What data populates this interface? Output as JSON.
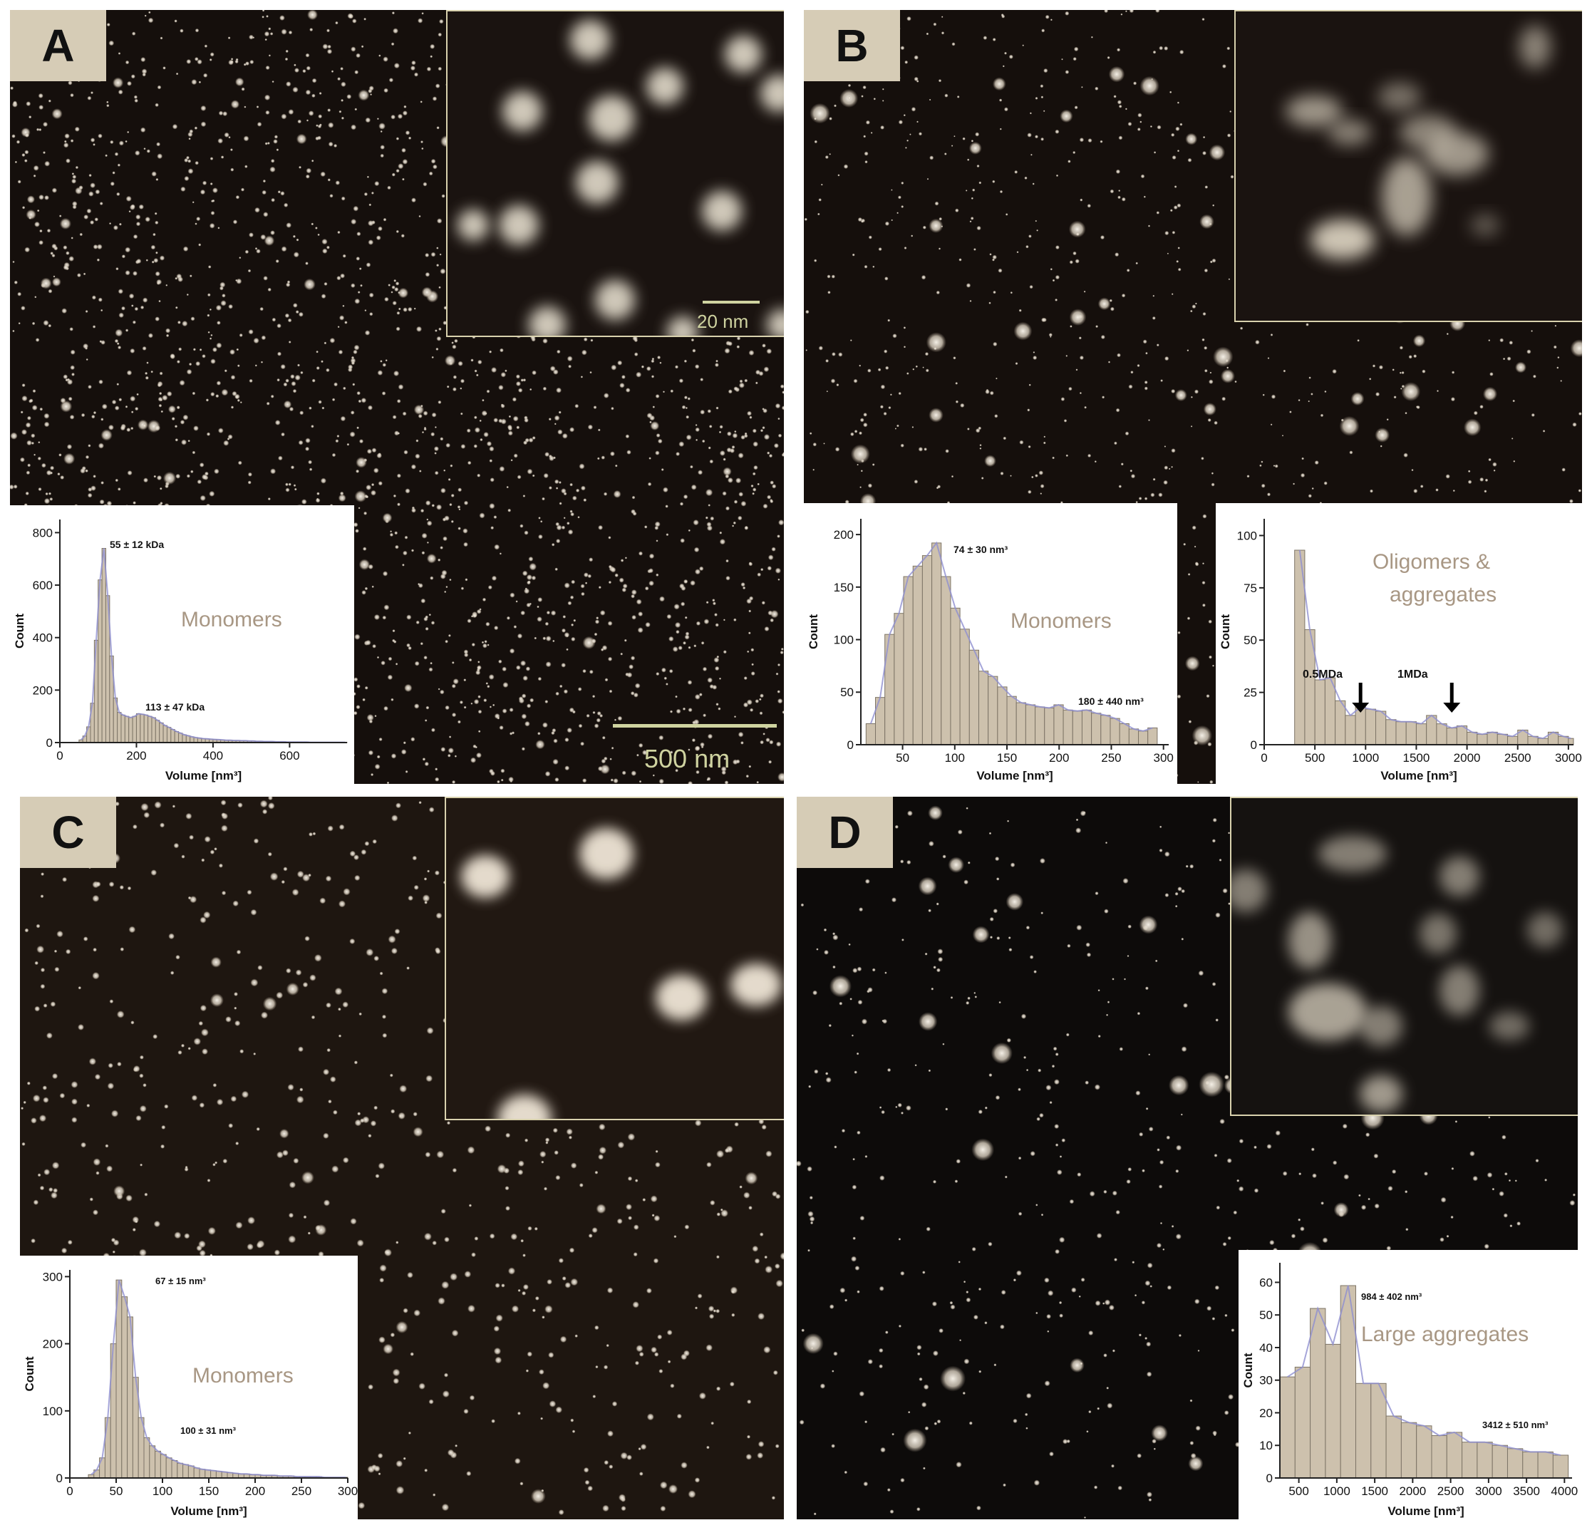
{
  "panels": [
    {
      "id": "A",
      "label": "A"
    },
    {
      "id": "B",
      "label": "B"
    },
    {
      "id": "C",
      "label": "C"
    },
    {
      "id": "D",
      "label": "D"
    }
  ],
  "scale_bars": {
    "inset_A": "20 nm",
    "main_A": "500 nm"
  },
  "colors": {
    "bar": "#cdc1ad",
    "bar_stroke": "#7d7466",
    "fit_total": "#8f8fd0",
    "fit_comp": "#b3c99a",
    "label_text": "#a89784",
    "panel_bg": "#150f0c",
    "label_bg": "#d6ccb6",
    "scalebar": "#cfd3a0"
  },
  "chart_data": [
    {
      "type": "bar",
      "panel": "A",
      "xlabel": "Volume [nm³]",
      "ylabel": "Count",
      "xlim": [
        0,
        750
      ],
      "ylim": [
        0,
        850
      ],
      "xticks": [
        0,
        200,
        400,
        600
      ],
      "yticks": [
        0,
        200,
        400,
        600,
        800
      ],
      "bin_start": 50,
      "bin_width": 10,
      "values": [
        10,
        25,
        60,
        150,
        390,
        620,
        740,
        560,
        330,
        170,
        115,
        105,
        100,
        95,
        100,
        110,
        108,
        105,
        100,
        95,
        85,
        75,
        65,
        58,
        50,
        42,
        36,
        30,
        26,
        22,
        19,
        17,
        15,
        14,
        13,
        12,
        11,
        10,
        9,
        9,
        8,
        8,
        7,
        7,
        6,
        6,
        5,
        5,
        4,
        4,
        4,
        3,
        3,
        3,
        2,
        2,
        2,
        2,
        2,
        2,
        1,
        1,
        1,
        1,
        1,
        1,
        1,
        1,
        1,
        1
      ],
      "annotations": [
        {
          "text": "55 ± 12 kDa"
        },
        {
          "text": "113 ± 47 kDa"
        },
        {
          "text": "Monomers"
        }
      ]
    },
    {
      "type": "bar",
      "panel": "B-monomers",
      "xlabel": "Volume [nm³]",
      "ylabel": "Count",
      "xlim": [
        10,
        305
      ],
      "ylim": [
        0,
        215
      ],
      "xticks": [
        50,
        100,
        150,
        200,
        250,
        300
      ],
      "yticks": [
        0,
        50,
        100,
        150,
        200
      ],
      "bin_start": 15,
      "bin_width": 9,
      "values": [
        20,
        45,
        105,
        125,
        160,
        170,
        180,
        192,
        160,
        130,
        110,
        90,
        70,
        65,
        55,
        46,
        40,
        38,
        36,
        35,
        38,
        33,
        32,
        33,
        30,
        28,
        25,
        20,
        15,
        13,
        16
      ],
      "annotations": [
        {
          "text": "74 ± 30 nm³"
        },
        {
          "text": "180 ± 440 nm³"
        },
        {
          "text": "Monomers"
        }
      ]
    },
    {
      "type": "bar",
      "panel": "B-oligomers",
      "xlabel": "Volume [nm³]",
      "ylabel": "Count",
      "xlim": [
        0,
        3050
      ],
      "ylim": [
        0,
        108
      ],
      "xticks": [
        0,
        500,
        1000,
        1500,
        2000,
        2500,
        3000
      ],
      "yticks": [
        0,
        25,
        50,
        75,
        100
      ],
      "bin_start": 300,
      "bin_width": 100,
      "values": [
        93,
        55,
        31,
        32,
        21,
        14,
        18,
        17,
        16,
        12,
        11,
        11,
        10,
        14,
        10,
        8,
        9,
        6,
        5,
        6,
        5,
        4,
        7,
        4,
        3,
        6,
        4,
        3,
        3,
        2,
        4
      ],
      "annotations": [
        {
          "text": "Oligomers &"
        },
        {
          "text": "aggregates"
        },
        {
          "text": "0.5MDa"
        },
        {
          "text": "1MDa"
        }
      ]
    },
    {
      "type": "bar",
      "panel": "C",
      "xlabel": "Volume [nm³]",
      "ylabel": "Count",
      "xlim": [
        0,
        300
      ],
      "ylim": [
        0,
        310
      ],
      "xticks": [
        0,
        50,
        100,
        150,
        200,
        250,
        300
      ],
      "yticks": [
        0,
        100,
        200,
        300
      ],
      "bin_start": 20,
      "bin_width": 6,
      "values": [
        5,
        12,
        30,
        90,
        200,
        295,
        270,
        240,
        150,
        90,
        60,
        48,
        40,
        35,
        30,
        26,
        22,
        20,
        18,
        15,
        13,
        12,
        11,
        10,
        9,
        8,
        7,
        6,
        6,
        5,
        5,
        4,
        4,
        4,
        3,
        3,
        3,
        2,
        2,
        2,
        2,
        2,
        1,
        1,
        1,
        1,
        1
      ],
      "annotations": [
        {
          "text": "67 ± 15 nm³"
        },
        {
          "text": "100 ± 31 nm³"
        },
        {
          "text": "Monomers"
        }
      ]
    },
    {
      "type": "bar",
      "panel": "D",
      "xlabel": "Volume [nm³]",
      "ylabel": "Count",
      "xlim": [
        250,
        4100
      ],
      "ylim": [
        0,
        66
      ],
      "xticks": [
        500,
        1000,
        1500,
        2000,
        2500,
        3000,
        3500,
        4000
      ],
      "yticks": [
        0,
        10,
        20,
        30,
        40,
        50,
        60
      ],
      "bin_start": 250,
      "bin_width": 200,
      "values": [
        31,
        34,
        52,
        41,
        59,
        29,
        29,
        19,
        17,
        16,
        13,
        14,
        11,
        11,
        10,
        9,
        8,
        8,
        7
      ],
      "annotations": [
        {
          "text": "984 ± 402 nm³"
        },
        {
          "text": "3412 ± 510 nm³"
        },
        {
          "text": "Large aggregates"
        }
      ]
    }
  ]
}
